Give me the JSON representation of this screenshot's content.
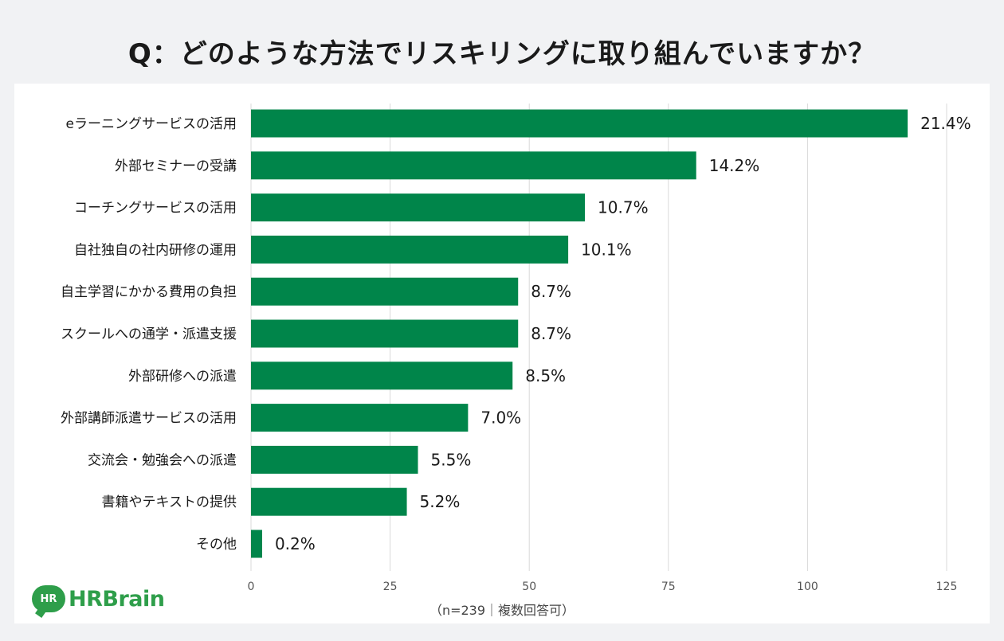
{
  "title": "Q：どのような方法でリスキリングに取り組んでいますか？",
  "note": "（n=239｜複数回答可）",
  "logo": {
    "badge": "HR",
    "text": "HRBrain"
  },
  "colors": {
    "bar": "#00854a",
    "grid": "#d9d9d9",
    "logo": "#2e9e4a"
  },
  "chart_data": {
    "type": "bar",
    "orientation": "horizontal",
    "categories": [
      "eラーニングサービスの活用",
      "外部セミナーの受講",
      "コーチングサービスの活用",
      "自社独自の社内研修の運用",
      "自主学習にかかる費用の負担",
      "スクールへの通学・派遣支援",
      "外部研修への派遣",
      "外部講師派遣サービスの活用",
      "交流会・勉強会への派遣",
      "書籍やテキストの提供",
      "その他"
    ],
    "values": [
      118,
      80,
      60,
      57,
      48,
      48,
      47,
      39,
      30,
      28,
      2
    ],
    "value_labels": [
      "21.4%",
      "14.2%",
      "10.7%",
      "10.1%",
      "8.7%",
      "8.7%",
      "8.5%",
      "7.0%",
      "5.5%",
      "5.2%",
      "0.2%"
    ],
    "xlim": [
      0,
      125
    ],
    "xticks": [
      0,
      25,
      50,
      75,
      100,
      125
    ],
    "grid": true
  }
}
